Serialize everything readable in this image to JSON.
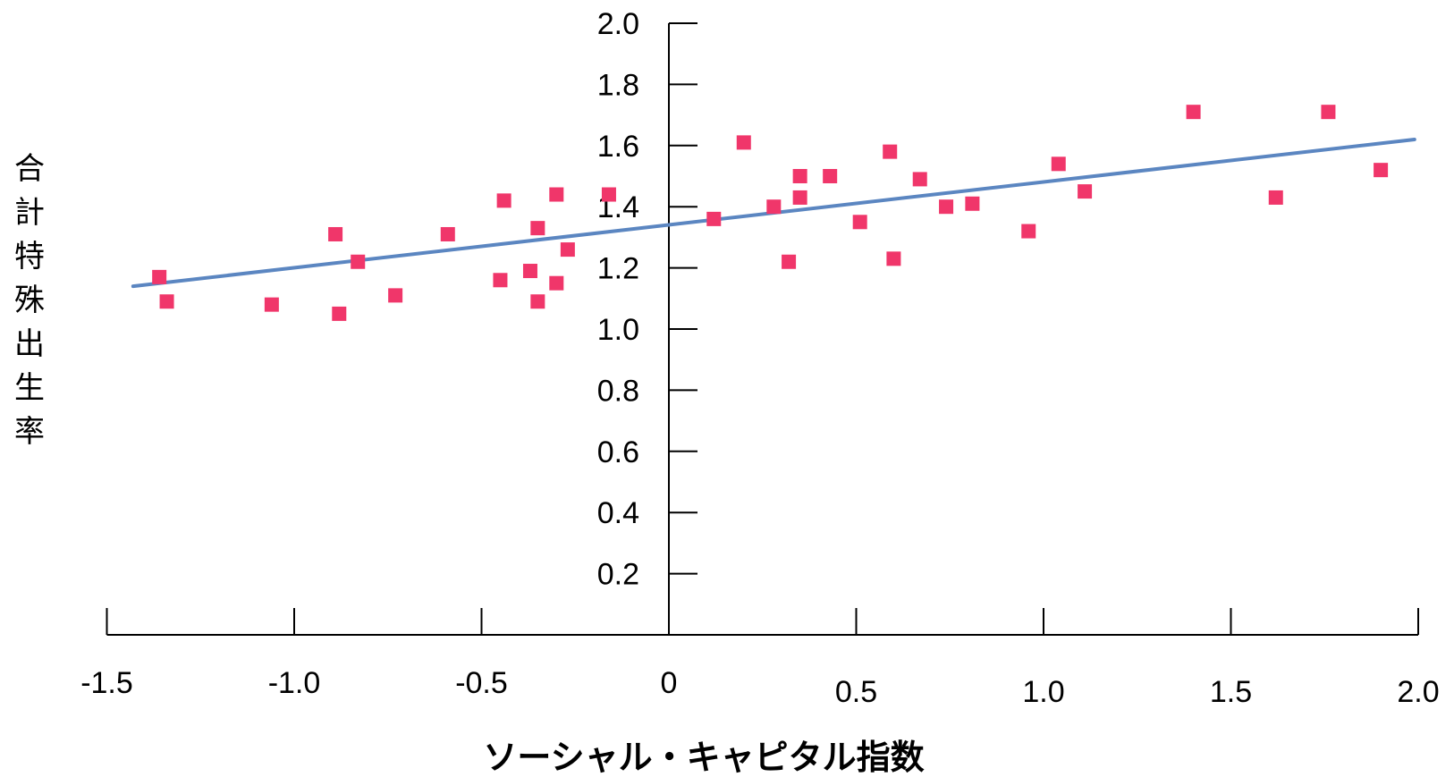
{
  "chart_data": {
    "type": "scatter",
    "title": "",
    "xlabel": "ソーシャル・キャピタル指数",
    "ylabel": "合計特殊出生率",
    "xlim": [
      -1.5,
      2.0
    ],
    "ylim": [
      0.0,
      2.0
    ],
    "x_ticks": [
      "-1.5",
      "-1.0",
      "-0.5",
      "0",
      "0.5",
      "1.0",
      "1.5",
      "2.0"
    ],
    "x_tick_values": [
      -1.5,
      -1.0,
      -0.5,
      0,
      0.5,
      1.0,
      1.5,
      2.0
    ],
    "y_ticks": [
      "0.2",
      "0.4",
      "0.6",
      "0.8",
      "1.0",
      "1.2",
      "1.4",
      "1.6",
      "1.8",
      "2.0"
    ],
    "y_tick_values": [
      0.2,
      0.4,
      0.6,
      0.8,
      1.0,
      1.2,
      1.4,
      1.6,
      1.8,
      2.0
    ],
    "grid": false,
    "legend": "none",
    "colors": {
      "points": "#f0366a",
      "trendline": "#5b86c1",
      "axes": "#000000"
    },
    "points": [
      {
        "x": -1.36,
        "y": 1.17
      },
      {
        "x": -1.34,
        "y": 1.09
      },
      {
        "x": -1.06,
        "y": 1.08
      },
      {
        "x": -0.89,
        "y": 1.31
      },
      {
        "x": -0.88,
        "y": 1.05
      },
      {
        "x": -0.83,
        "y": 1.22
      },
      {
        "x": -0.73,
        "y": 1.11
      },
      {
        "x": -0.59,
        "y": 1.31
      },
      {
        "x": -0.45,
        "y": 1.16
      },
      {
        "x": -0.44,
        "y": 1.42
      },
      {
        "x": -0.37,
        "y": 1.19
      },
      {
        "x": -0.35,
        "y": 1.33
      },
      {
        "x": -0.35,
        "y": 1.09
      },
      {
        "x": -0.3,
        "y": 1.44
      },
      {
        "x": -0.3,
        "y": 1.15
      },
      {
        "x": -0.27,
        "y": 1.26
      },
      {
        "x": -0.16,
        "y": 1.44
      },
      {
        "x": 0.12,
        "y": 1.36
      },
      {
        "x": 0.2,
        "y": 1.61
      },
      {
        "x": 0.28,
        "y": 1.4
      },
      {
        "x": 0.32,
        "y": 1.22
      },
      {
        "x": 0.35,
        "y": 1.5
      },
      {
        "x": 0.35,
        "y": 1.43
      },
      {
        "x": 0.43,
        "y": 1.5
      },
      {
        "x": 0.51,
        "y": 1.35
      },
      {
        "x": 0.59,
        "y": 1.58
      },
      {
        "x": 0.6,
        "y": 1.23
      },
      {
        "x": 0.67,
        "y": 1.49
      },
      {
        "x": 0.74,
        "y": 1.4
      },
      {
        "x": 0.81,
        "y": 1.41
      },
      {
        "x": 0.96,
        "y": 1.32
      },
      {
        "x": 1.04,
        "y": 1.54
      },
      {
        "x": 1.11,
        "y": 1.45
      },
      {
        "x": 1.4,
        "y": 1.71
      },
      {
        "x": 1.62,
        "y": 1.43
      },
      {
        "x": 1.76,
        "y": 1.71
      },
      {
        "x": 1.9,
        "y": 1.52
      }
    ],
    "trendline": {
      "x": [
        -1.43,
        1.99
      ],
      "y": [
        1.14,
        1.62
      ]
    }
  }
}
